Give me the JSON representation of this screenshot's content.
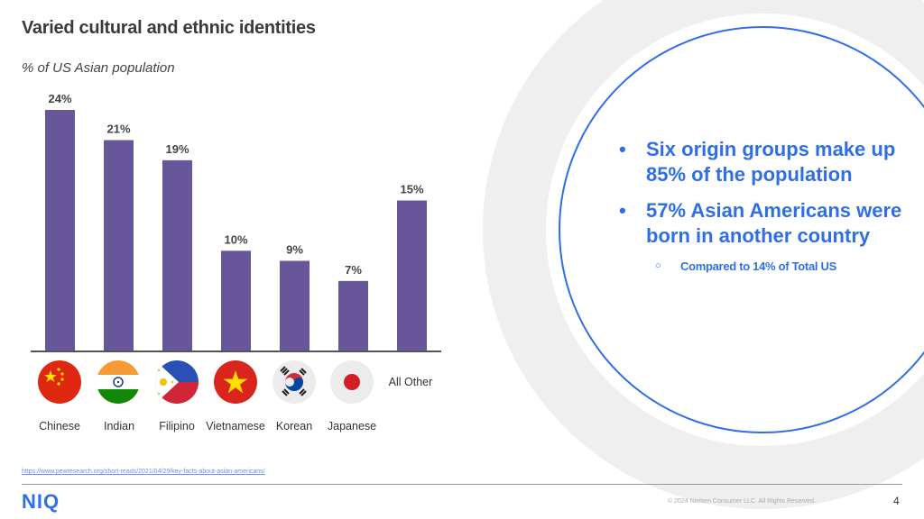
{
  "header": {
    "title": "Varied cultural and ethnic identities",
    "subtitle": "% of US Asian population"
  },
  "chart_data": {
    "type": "bar",
    "categories": [
      "Chinese",
      "Indian",
      "Filipino",
      "Vietnamese",
      "Korean",
      "Japanese",
      "All Other"
    ],
    "values": [
      24,
      21,
      19,
      10,
      9,
      7,
      15
    ],
    "data_labels": [
      "24%",
      "21%",
      "19%",
      "10%",
      "9%",
      "7%",
      "15%"
    ],
    "title": "",
    "xlabel": "",
    "ylabel": "",
    "ylim": [
      0,
      24
    ],
    "grid": false,
    "legend": "none",
    "bar_color": "#67579a"
  },
  "flags": [
    "china-flag-icon",
    "india-flag-icon",
    "philippines-flag-icon",
    "vietnam-flag-icon",
    "south-korea-flag-icon",
    "japan-flag-icon"
  ],
  "callout": {
    "bullets": [
      "Six origin groups make up 85% of the population",
      "57% Asian Americans were born in another country"
    ],
    "sub_bullet": "Compared to 14% of Total US",
    "bullet_symbol": "•",
    "sub_bullet_symbol": "○",
    "accent_color": "#2f6fe6"
  },
  "footer": {
    "source": "https://www.pewresearch.org/short-reads/2021/04/29/key-facts-about-asian-americans/",
    "logo": "NIQ",
    "copyright": "© 2024 Nielsen Consumer LLC. All Rights Reserved.",
    "page_number": "4"
  }
}
